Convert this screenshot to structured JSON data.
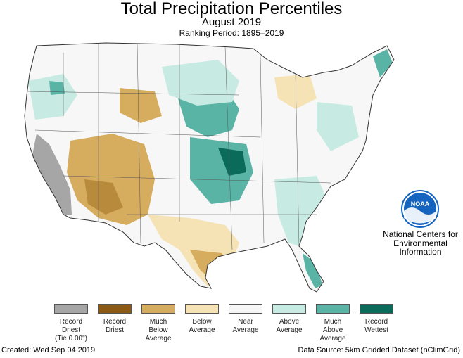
{
  "header": {
    "title": "Total Precipitation Percentiles",
    "subtitle": "August 2019",
    "ranking_period": "Ranking Period: 1895–2019"
  },
  "organization": {
    "logo_text": "NOAA",
    "line1": "National Centers for",
    "line2": "Environmental",
    "line3": "Information"
  },
  "legend": [
    {
      "line1": "Record",
      "line2": "Driest",
      "line3": "(Tie 0.00\")",
      "color": "#a6a6a6"
    },
    {
      "line1": "Record",
      "line2": "Driest",
      "line3": "",
      "color": "#8c5a14"
    },
    {
      "line1": "Much",
      "line2": "Below",
      "line3": "Average",
      "color": "#d6ac5e"
    },
    {
      "line1": "Below",
      "line2": "Average",
      "line3": "",
      "color": "#f5e3b6"
    },
    {
      "line1": "Near",
      "line2": "Average",
      "line3": "",
      "color": "#f7f7f7"
    },
    {
      "line1": "Above",
      "line2": "Average",
      "line3": "",
      "color": "#c7ebe2"
    },
    {
      "line1": "Much",
      "line2": "Above",
      "line3": "Average",
      "color": "#5ab4a5"
    },
    {
      "line1": "Record",
      "line2": "Wettest",
      "line3": "",
      "color": "#0a6b5a"
    }
  ],
  "footer": {
    "created": "Created: Wed Sep 04 2019",
    "source": "Data Source: 5km Gridded Dataset (nClimGrid)"
  },
  "colors": {
    "record_driest_tie": "#a6a6a6",
    "record_driest": "#8c5a14",
    "much_below": "#d6ac5e",
    "below": "#f5e3b6",
    "near": "#f7f7f7",
    "above": "#c7ebe2",
    "much_above": "#5ab4a5",
    "record_wettest": "#0a6b5a",
    "noaa_blue": "#1565c0"
  }
}
